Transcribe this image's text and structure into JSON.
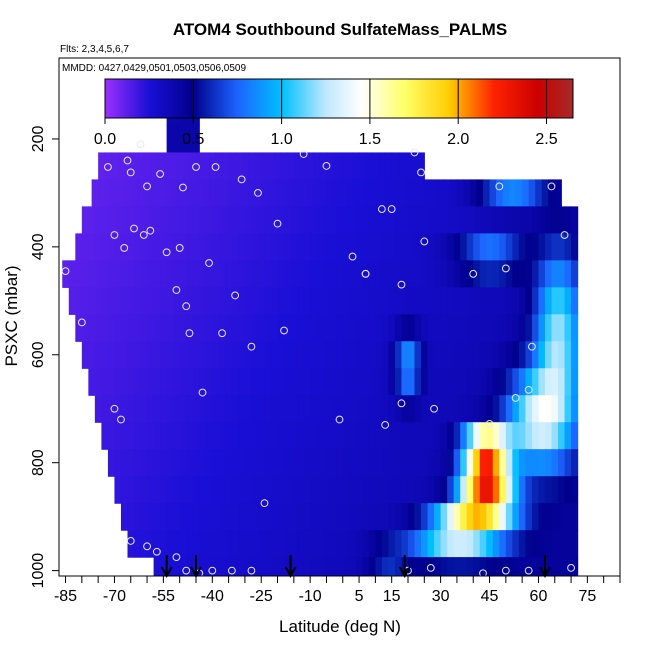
{
  "chart_data": {
    "type": "heatmap",
    "title": "ATOM4 Southbound SulfateMass_PALMS",
    "flights_label": "Flts: 2,3,4,5,6,7",
    "dates_label": "MMDD: 0427,0429,0501,0503,0506,0509",
    "xlabel": "Latitude (deg N)",
    "ylabel": "PSXC (mbar)",
    "xlim": [
      -87,
      85
    ],
    "ylim": [
      1010,
      50
    ],
    "x_ticks": [
      -85,
      -80,
      -75,
      -70,
      -65,
      -60,
      -55,
      -50,
      -45,
      -40,
      -35,
      -30,
      -25,
      -20,
      -15,
      -10,
      -5,
      0,
      5,
      10,
      15,
      20,
      25,
      30,
      35,
      40,
      45,
      50,
      55,
      60,
      65,
      70,
      75,
      80,
      85
    ],
    "x_tick_labels": [
      {
        "value": -85,
        "label": "-85"
      },
      {
        "value": -70,
        "label": "-70"
      },
      {
        "value": -55,
        "label": "-55"
      },
      {
        "value": -40,
        "label": "-40"
      },
      {
        "value": -25,
        "label": "-25"
      },
      {
        "value": -10,
        "label": "-10"
      },
      {
        "value": 5,
        "label": "5"
      },
      {
        "value": 15,
        "label": "15"
      },
      {
        "value": 30,
        "label": "30"
      },
      {
        "value": 45,
        "label": "45"
      },
      {
        "value": 60,
        "label": "60"
      },
      {
        "value": 75,
        "label": "75"
      }
    ],
    "y_ticks": [
      200,
      400,
      600,
      800,
      1000
    ],
    "colorbar": {
      "min": 0,
      "max": 2.65,
      "ticks": [
        0.0,
        0.5,
        1.0,
        1.5,
        2.0,
        2.5
      ],
      "tick_labels": [
        "0.0",
        "0.5",
        "1.0",
        "1.5",
        "2.0",
        "2.5"
      ],
      "colors": [
        [
          0.0,
          "#9b30ff"
        ],
        [
          0.25,
          "#1a0fd6"
        ],
        [
          0.5,
          "#00008b"
        ],
        [
          0.75,
          "#1c64ff"
        ],
        [
          1.0,
          "#00bfff"
        ],
        [
          1.25,
          "#bfe8ff"
        ],
        [
          1.45,
          "#ffffff"
        ],
        [
          1.7,
          "#ffff66"
        ],
        [
          1.95,
          "#ffcc00"
        ],
        [
          2.2,
          "#ff2200"
        ],
        [
          2.45,
          "#cc0000"
        ],
        [
          2.65,
          "#a52a2a"
        ]
      ]
    },
    "pressure_levels": [
      150,
      200,
      250,
      300,
      350,
      400,
      450,
      500,
      550,
      600,
      650,
      700,
      750,
      800,
      850,
      900,
      950,
      1000
    ],
    "rows": [
      {
        "p": 150,
        "lat": [
          -54,
          -45
        ]
      },
      {
        "p": 200,
        "lat": [
          -54,
          -45
        ]
      },
      {
        "p": 250,
        "lat": [
          -75,
          25
        ]
      },
      {
        "p": 300,
        "lat": [
          -77,
          67
        ]
      },
      {
        "p": 350,
        "lat": [
          -80,
          72
        ]
      },
      {
        "p": 400,
        "lat": [
          -82,
          72
        ]
      },
      {
        "p": 450,
        "lat": [
          -86,
          72
        ]
      },
      {
        "p": 500,
        "lat": [
          -84,
          72
        ]
      },
      {
        "p": 550,
        "lat": [
          -82,
          72
        ]
      },
      {
        "p": 600,
        "lat": [
          -80,
          72
        ]
      },
      {
        "p": 650,
        "lat": [
          -78,
          72
        ]
      },
      {
        "p": 700,
        "lat": [
          -76,
          72
        ]
      },
      {
        "p": 750,
        "lat": [
          -74,
          72
        ]
      },
      {
        "p": 800,
        "lat": [
          -72,
          72
        ]
      },
      {
        "p": 850,
        "lat": [
          -70,
          72
        ]
      },
      {
        "p": 900,
        "lat": [
          -68,
          72
        ]
      },
      {
        "p": 950,
        "lat": [
          -66,
          72
        ]
      },
      {
        "p": 1000,
        "lat": [
          -58,
          72
        ]
      }
    ],
    "hotspots": [
      {
        "lat": 44,
        "p": 780,
        "value": 2.5,
        "dlat": 7,
        "dp": 35
      },
      {
        "lat": 44,
        "p": 860,
        "value": 2.1,
        "dlat": 8,
        "dp": 30
      },
      {
        "lat": 40,
        "p": 910,
        "value": 1.5,
        "dlat": 12,
        "dp": 25
      },
      {
        "lat": 35,
        "p": 960,
        "value": 0.9,
        "dlat": 14,
        "dp": 30
      },
      {
        "lat": 60,
        "p": 720,
        "value": 0.9,
        "dlat": 10,
        "dp": 90
      },
      {
        "lat": 66,
        "p": 560,
        "value": 0.8,
        "dlat": 7,
        "dp": 150
      },
      {
        "lat": 45,
        "p": 420,
        "value": 0.7,
        "dlat": 10,
        "dp": 30
      },
      {
        "lat": 52,
        "p": 310,
        "value": 0.6,
        "dlat": 10,
        "dp": 25
      },
      {
        "lat": 20,
        "p": 620,
        "value": 0.6,
        "dlat": 4,
        "dp": 60
      },
      {
        "lat": 14,
        "p": 980,
        "value": 0.45,
        "dlat": 6,
        "dp": 25
      }
    ],
    "sample_points": [
      {
        "lat": -85,
        "p": 445
      },
      {
        "lat": -80,
        "p": 540
      },
      {
        "lat": -72,
        "p": 252
      },
      {
        "lat": -70,
        "p": 378
      },
      {
        "lat": -67,
        "p": 402
      },
      {
        "lat": -66,
        "p": 240
      },
      {
        "lat": -65,
        "p": 262
      },
      {
        "lat": -64,
        "p": 366
      },
      {
        "lat": -62,
        "p": 210
      },
      {
        "lat": -61,
        "p": 378
      },
      {
        "lat": -60,
        "p": 288
      },
      {
        "lat": -59,
        "p": 370
      },
      {
        "lat": -56,
        "p": 265
      },
      {
        "lat": -54,
        "p": 410
      },
      {
        "lat": -51,
        "p": 480
      },
      {
        "lat": -50,
        "p": 402
      },
      {
        "lat": -49,
        "p": 290
      },
      {
        "lat": -48,
        "p": 510
      },
      {
        "lat": -47,
        "p": 560
      },
      {
        "lat": -45,
        "p": 252
      },
      {
        "lat": -43,
        "p": 670
      },
      {
        "lat": -41,
        "p": 430
      },
      {
        "lat": -39,
        "p": 252
      },
      {
        "lat": -37,
        "p": 560
      },
      {
        "lat": -33,
        "p": 490
      },
      {
        "lat": -31,
        "p": 275
      },
      {
        "lat": -28,
        "p": 585
      },
      {
        "lat": -26,
        "p": 300
      },
      {
        "lat": -20,
        "p": 357
      },
      {
        "lat": -18,
        "p": 555
      },
      {
        "lat": -12,
        "p": 228
      },
      {
        "lat": -5,
        "p": 250
      },
      {
        "lat": -1,
        "p": 720
      },
      {
        "lat": 3,
        "p": 418
      },
      {
        "lat": 7,
        "p": 450
      },
      {
        "lat": 12,
        "p": 330
      },
      {
        "lat": 15,
        "p": 330
      },
      {
        "lat": 18,
        "p": 470
      },
      {
        "lat": 22,
        "p": 225
      },
      {
        "lat": 24,
        "p": 262
      },
      {
        "lat": 25,
        "p": 390
      },
      {
        "lat": 28,
        "p": 700
      },
      {
        "lat": 40,
        "p": 450
      },
      {
        "lat": 48,
        "p": 288
      },
      {
        "lat": 50,
        "p": 440
      },
      {
        "lat": 53,
        "p": 680
      },
      {
        "lat": 57,
        "p": 665
      },
      {
        "lat": 58,
        "p": 585
      },
      {
        "lat": 64,
        "p": 288
      },
      {
        "lat": 68,
        "p": 378
      },
      {
        "lat": -70,
        "p": 700
      },
      {
        "lat": -68,
        "p": 720
      },
      {
        "lat": -65,
        "p": 945
      },
      {
        "lat": -60,
        "p": 955
      },
      {
        "lat": -57,
        "p": 965
      },
      {
        "lat": -51,
        "p": 975
      },
      {
        "lat": -48,
        "p": 1000
      },
      {
        "lat": -44,
        "p": 1005
      },
      {
        "lat": -40,
        "p": 1000
      },
      {
        "lat": -34,
        "p": 1000
      },
      {
        "lat": -28,
        "p": 1000
      },
      {
        "lat": -24,
        "p": 875
      },
      {
        "lat": 20,
        "p": 1000
      },
      {
        "lat": 27,
        "p": 995
      },
      {
        "lat": 43,
        "p": 1005
      },
      {
        "lat": 50,
        "p": 1000
      },
      {
        "lat": 57,
        "p": 1000
      },
      {
        "lat": 70,
        "p": 995
      },
      {
        "lat": 13,
        "p": 730
      },
      {
        "lat": 18,
        "p": 690
      },
      {
        "lat": 45,
        "p": 728
      },
      {
        "lat": 7,
        "p": 450
      }
    ],
    "flight_arrows_lat": [
      -54,
      -45,
      -16,
      19,
      62
    ]
  }
}
